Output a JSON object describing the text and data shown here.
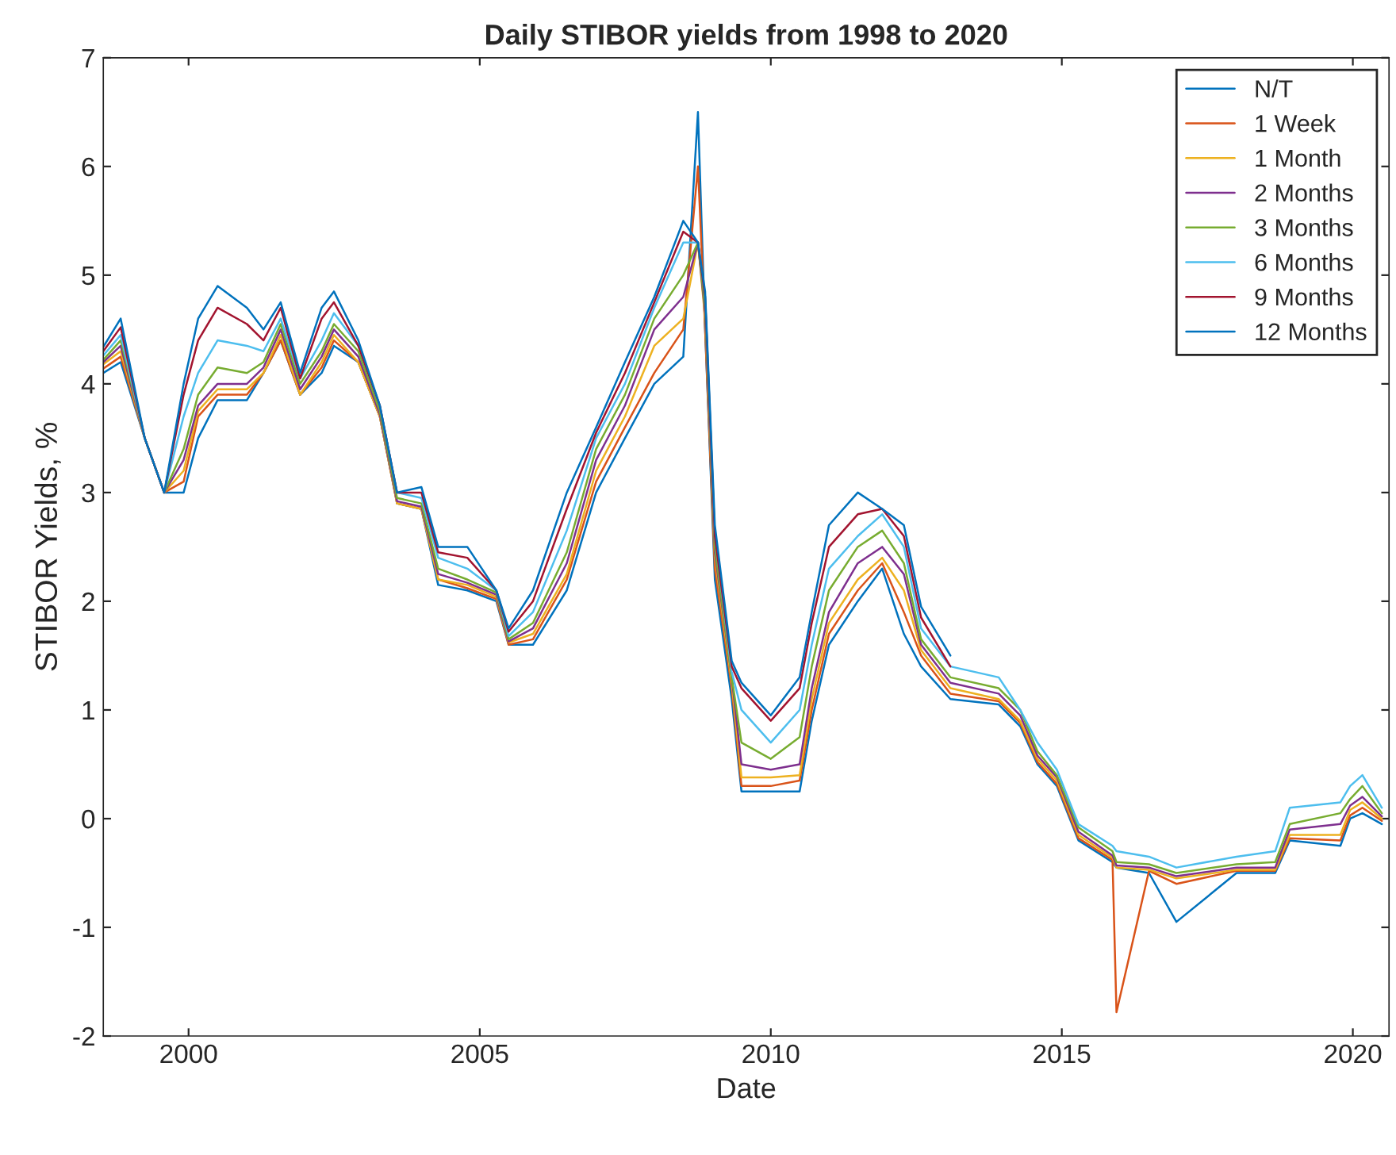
{
  "chart_data": {
    "type": "line",
    "title": "Daily STIBOR yields from 1998 to 2020",
    "xlabel": "Date",
    "ylabel": "STIBOR Yields, %",
    "x": [
      "1998-07-15",
      "1998-11-01",
      "1999-04-01",
      "1999-08-01",
      "1999-12-01",
      "2000-03-01",
      "2000-07-01",
      "2001-01-01",
      "2001-04-15",
      "2001-08-01",
      "2001-12-01",
      "2002-04-15",
      "2002-07-01",
      "2002-12-01",
      "2003-04-15",
      "2003-08-01",
      "2004-01-01",
      "2004-04-15",
      "2004-10-15",
      "2005-04-15",
      "2005-07-01",
      "2005-12-01",
      "2006-07-01",
      "2007-01-01",
      "2007-07-01",
      "2008-01-01",
      "2008-07-01",
      "2008-10-01",
      "2008-11-15",
      "2009-01-15",
      "2009-05-01",
      "2009-07-01",
      "2010-01-01",
      "2010-07-01",
      "2010-09-15",
      "2011-01-01",
      "2011-07-01",
      "2011-12-01",
      "2012-04-15",
      "2012-08-01",
      "2013-02-01",
      "2013-12-01",
      "2014-04-15",
      "2014-08-01",
      "2014-12-01",
      "2015-04-15",
      "2015-11-15",
      "2015-12-10",
      "2016-07-01",
      "2016-12-20",
      "2018-01-01",
      "2018-09-01",
      "2018-12-01",
      "2019-10-15",
      "2019-12-15",
      "2020-03-01",
      "2020-07-01"
    ],
    "series": [
      {
        "name": "N/T",
        "color": "#0072bd",
        "values": [
          4.1,
          4.2,
          3.5,
          3.0,
          3.0,
          3.5,
          3.85,
          3.85,
          4.1,
          4.4,
          3.9,
          4.1,
          4.35,
          4.2,
          3.7,
          2.9,
          2.85,
          2.15,
          2.1,
          2.0,
          1.6,
          1.6,
          2.1,
          3.0,
          3.5,
          4.0,
          4.25,
          6.5,
          4.5,
          2.2,
          1.1,
          0.25,
          0.25,
          0.25,
          0.9,
          1.6,
          2.0,
          2.3,
          1.7,
          1.4,
          1.1,
          1.05,
          0.85,
          0.5,
          0.3,
          -0.2,
          -0.4,
          -0.45,
          -0.5,
          -0.95,
          -0.5,
          -0.5,
          -0.2,
          -0.25,
          0.0,
          0.05,
          -0.05
        ]
      },
      {
        "name": "1 Week",
        "color": "#d95319",
        "values": [
          4.14,
          4.25,
          3.5,
          3.0,
          3.1,
          3.7,
          3.9,
          3.9,
          4.1,
          4.4,
          3.9,
          4.15,
          4.4,
          4.2,
          3.7,
          2.9,
          2.85,
          2.2,
          2.12,
          2.02,
          1.6,
          1.65,
          2.2,
          3.1,
          3.6,
          4.1,
          4.5,
          6.0,
          4.5,
          2.3,
          1.2,
          0.3,
          0.3,
          0.35,
          1.0,
          1.7,
          2.1,
          2.35,
          1.9,
          1.5,
          1.15,
          1.08,
          0.88,
          0.52,
          0.32,
          -0.18,
          -0.38,
          -1.78,
          -0.48,
          -0.6,
          -0.48,
          -0.48,
          -0.18,
          -0.2,
          0.03,
          0.1,
          -0.02
        ]
      },
      {
        "name": "1 Month",
        "color": "#edb120",
        "values": [
          4.18,
          4.3,
          3.5,
          3.0,
          3.2,
          3.75,
          3.95,
          3.95,
          4.1,
          4.45,
          3.9,
          4.2,
          4.45,
          4.2,
          3.7,
          2.9,
          2.85,
          2.2,
          2.15,
          2.04,
          1.62,
          1.7,
          2.25,
          3.2,
          3.7,
          4.35,
          4.6,
          5.3,
          4.6,
          2.4,
          1.25,
          0.38,
          0.38,
          0.4,
          1.1,
          1.8,
          2.2,
          2.4,
          2.1,
          1.55,
          1.2,
          1.1,
          0.9,
          0.55,
          0.35,
          -0.15,
          -0.36,
          -0.45,
          -0.47,
          -0.55,
          -0.47,
          -0.47,
          -0.15,
          -0.15,
          0.08,
          0.15,
          0.0
        ]
      },
      {
        "name": "2 Months",
        "color": "#7e2f8e",
        "values": [
          4.2,
          4.35,
          3.5,
          3.0,
          3.3,
          3.8,
          4.0,
          4.0,
          4.15,
          4.5,
          3.95,
          4.25,
          4.5,
          4.25,
          3.72,
          2.92,
          2.87,
          2.25,
          2.17,
          2.06,
          1.63,
          1.75,
          2.35,
          3.3,
          3.8,
          4.5,
          4.8,
          5.3,
          4.65,
          2.45,
          1.3,
          0.5,
          0.45,
          0.5,
          1.2,
          1.9,
          2.35,
          2.5,
          2.25,
          1.6,
          1.25,
          1.15,
          0.95,
          0.58,
          0.38,
          -0.12,
          -0.34,
          -0.43,
          -0.45,
          -0.53,
          -0.45,
          -0.45,
          -0.1,
          -0.05,
          0.12,
          0.2,
          0.02
        ]
      },
      {
        "name": "3 Months",
        "color": "#77ac30",
        "values": [
          4.22,
          4.4,
          3.5,
          3.0,
          3.4,
          3.9,
          4.15,
          4.1,
          4.2,
          4.55,
          4.0,
          4.3,
          4.55,
          4.3,
          3.75,
          2.95,
          2.9,
          2.3,
          2.2,
          2.08,
          1.65,
          1.8,
          2.45,
          3.4,
          3.9,
          4.6,
          5.0,
          5.3,
          4.7,
          2.5,
          1.3,
          0.7,
          0.55,
          0.75,
          1.4,
          2.1,
          2.5,
          2.65,
          2.35,
          1.65,
          1.3,
          1.2,
          1.0,
          0.62,
          0.4,
          -0.08,
          -0.3,
          -0.4,
          -0.42,
          -0.5,
          -0.42,
          -0.4,
          -0.05,
          0.05,
          0.18,
          0.3,
          0.05
        ]
      },
      {
        "name": "6 Months",
        "color": "#4dbeee",
        "values": [
          4.26,
          4.45,
          3.5,
          3.0,
          3.7,
          4.1,
          4.4,
          4.35,
          4.3,
          4.6,
          4.05,
          4.4,
          4.65,
          4.35,
          3.8,
          3.0,
          2.95,
          2.4,
          2.3,
          2.1,
          1.68,
          1.9,
          2.65,
          3.5,
          4.0,
          4.7,
          5.3,
          5.3,
          4.8,
          2.6,
          1.35,
          1.0,
          0.7,
          1.0,
          1.6,
          2.3,
          2.6,
          2.8,
          2.5,
          1.75,
          1.4,
          1.3,
          1.0,
          0.7,
          0.45,
          -0.05,
          -0.25,
          -0.3,
          -0.35,
          -0.45,
          -0.35,
          -0.3,
          0.1,
          0.15,
          0.3,
          0.4,
          0.1
        ]
      },
      {
        "name": "9 Months",
        "color": "#a2142f",
        "values": [
          4.3,
          4.52,
          3.5,
          3.0,
          3.9,
          4.4,
          4.7,
          4.55,
          4.4,
          4.7,
          4.05,
          4.6,
          4.75,
          4.35,
          3.8,
          3.0,
          3.0,
          2.45,
          2.4,
          2.1,
          1.72,
          2.0,
          2.85,
          3.55,
          4.1,
          4.75,
          5.4,
          5.3,
          4.8,
          2.6,
          1.4,
          1.2,
          0.9,
          1.2,
          1.8,
          2.5,
          2.8,
          2.85,
          2.6,
          1.85,
          1.4,
          null,
          null,
          null,
          null,
          null,
          null,
          null,
          null,
          null,
          null,
          null,
          null,
          null,
          null,
          null,
          null
        ]
      },
      {
        "name": "12 Months",
        "color": "#0072bd",
        "values": [
          4.34,
          4.6,
          3.5,
          3.0,
          4.0,
          4.6,
          4.9,
          4.7,
          4.5,
          4.75,
          4.1,
          4.7,
          4.85,
          4.4,
          3.8,
          3.0,
          3.05,
          2.5,
          2.5,
          2.1,
          1.75,
          2.1,
          3.0,
          3.6,
          4.2,
          4.8,
          5.5,
          5.3,
          4.85,
          2.7,
          1.45,
          1.25,
          0.95,
          1.3,
          1.9,
          2.7,
          3.0,
          2.85,
          2.7,
          1.95,
          1.5,
          null,
          null,
          null,
          null,
          null,
          null,
          null,
          null,
          null,
          null,
          null,
          null,
          null,
          null,
          null,
          null
        ]
      }
    ],
    "xlim": [
      "1998-07-15",
      "2020-08-15"
    ],
    "xticks": [
      {
        "value": "2000-01-01",
        "label": "2000"
      },
      {
        "value": "2005-01-01",
        "label": "2005"
      },
      {
        "value": "2010-01-01",
        "label": "2010"
      },
      {
        "value": "2015-01-01",
        "label": "2015"
      },
      {
        "value": "2020-01-01",
        "label": "2020"
      }
    ],
    "ylim": [
      -2,
      7
    ],
    "yticks": [
      -2,
      -1,
      0,
      1,
      2,
      3,
      4,
      5,
      6,
      7
    ],
    "grid": false,
    "legend": "top right",
    "marker": "none",
    "line_style": "solid"
  }
}
